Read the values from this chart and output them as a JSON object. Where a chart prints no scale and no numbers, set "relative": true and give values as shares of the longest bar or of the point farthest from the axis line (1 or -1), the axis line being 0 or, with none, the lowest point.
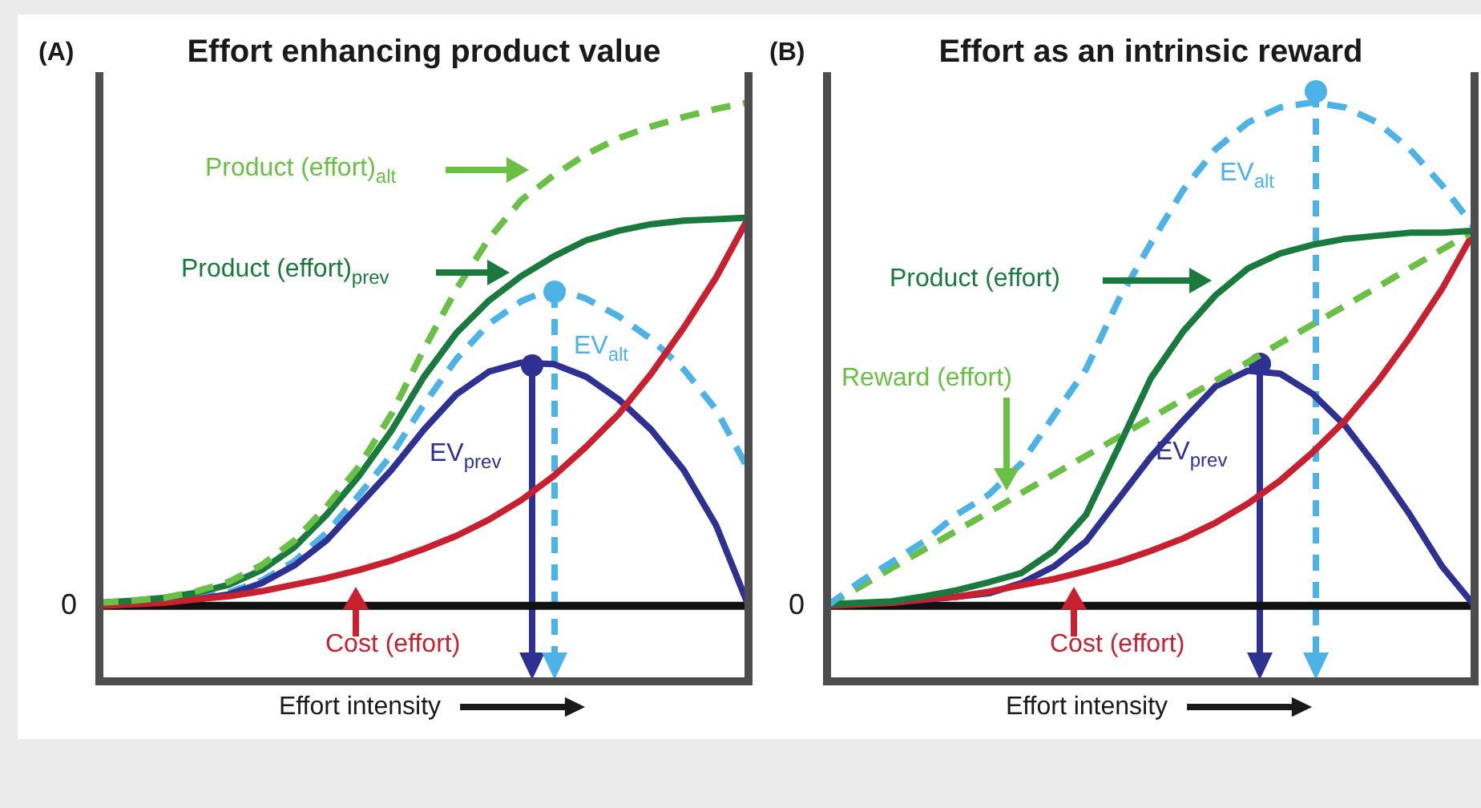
{
  "chart_data": [
    {
      "type": "line",
      "title": "Effort enhancing product value",
      "xlabel": "Effort intensity",
      "relative": true,
      "marker": "none",
      "legend": "top left",
      "categories": [
        null,
        null,
        null,
        null,
        null,
        null,
        null,
        null,
        null,
        null,
        null,
        null,
        null,
        null,
        null,
        null,
        null,
        null,
        null,
        null,
        null
      ],
      "series": [
        {
          "name": "Product (effort)$_{alt}$",
          "color": "#6abf45",
          "line_style": "dashed",
          "values": [
            0.006,
            0.01,
            0.016,
            0.029,
            0.048,
            0.081,
            0.129,
            0.197,
            0.277,
            0.381,
            0.51,
            0.629,
            0.729,
            0.806,
            0.855,
            0.897,
            0.929,
            0.952,
            0.971,
            0.987,
            1
          ]
        },
        {
          "name": "Product (effort)$_{prev}$",
          "color": "#1a7a3e",
          "line_style": "solid",
          "values": [
            0.006,
            0.01,
            0.016,
            0.026,
            0.042,
            0.071,
            0.116,
            0.181,
            0.258,
            0.348,
            0.455,
            0.542,
            0.606,
            0.655,
            0.694,
            0.726,
            0.745,
            0.758,
            0.765,
            0.768,
            0.771
          ]
        },
        {
          "name": "Cost (effort)",
          "color": "#c8202f",
          "line_style": "solid",
          "values": [
            0,
            0.003,
            0.006,
            0.013,
            0.019,
            0.029,
            0.042,
            0.055,
            0.071,
            0.09,
            0.113,
            0.139,
            0.171,
            0.21,
            0.258,
            0.316,
            0.381,
            0.461,
            0.552,
            0.652,
            0.771
          ]
        },
        {
          "name": "EV$_{prev}$",
          "color": "#2e3192",
          "line_style": "solid",
          "values": [
            null,
            null,
            0.008,
            0.013,
            0.023,
            0.045,
            0.08,
            0.13,
            0.2,
            0.27,
            0.35,
            0.42,
            0.465,
            0.483,
            0.48,
            0.455,
            0.41,
            0.35,
            0.27,
            0.16,
            0
          ]
        },
        {
          "name": "EV$_{alt}$",
          "color": "#4db3e6",
          "line_style": "dashed",
          "values": [
            null,
            null,
            null,
            0.015,
            0.027,
            0.05,
            0.088,
            0.145,
            0.22,
            0.3,
            0.4,
            0.49,
            0.56,
            0.605,
            0.632,
            0.61,
            0.575,
            0.53,
            0.47,
            0.39,
            0.27
          ]
        }
      ],
      "annotations": [
        "(A)",
        "0"
      ]
    },
    {
      "type": "line",
      "title": "Effort as an intrinsic reward",
      "xlabel": "Effort intensity",
      "relative": true,
      "marker": "none",
      "legend": "left",
      "categories": [
        null,
        null,
        null,
        null,
        null,
        null,
        null,
        null,
        null,
        null,
        null,
        null,
        null,
        null,
        null,
        null,
        null,
        null,
        null,
        null,
        null
      ],
      "series": [
        {
          "name": "EV$_{alt}$",
          "color": "#4db3e6",
          "line_style": "dashed",
          "values": [
            0,
            0.047,
            0.087,
            0.128,
            0.181,
            0.221,
            0.283,
            0.377,
            0.47,
            0.607,
            0.72,
            0.826,
            0.907,
            0.96,
            0.99,
            1,
            0.99,
            0.96,
            0.907,
            0.835,
            0.751
          ]
        },
        {
          "name": "Product (effort)",
          "color": "#1a7a3e",
          "line_style": "solid",
          "values": [
            0.003,
            0.006,
            0.009,
            0.019,
            0.031,
            0.047,
            0.065,
            0.109,
            0.181,
            0.315,
            0.452,
            0.545,
            0.617,
            0.67,
            0.7,
            0.717,
            0.729,
            0.735,
            0.741,
            0.741,
            0.745
          ]
        },
        {
          "name": "Reward (effort)",
          "color": "#6abf45",
          "line_style": "dashed",
          "values": [
            0,
            0.037,
            0.075,
            0.112,
            0.149,
            0.186,
            0.224,
            0.261,
            0.298,
            0.335,
            0.373,
            0.41,
            0.447,
            0.484,
            0.522,
            0.559,
            0.596,
            0.633,
            0.671,
            0.708,
            0.745
          ]
        },
        {
          "name": "Cost (effort)",
          "color": "#c8202f",
          "line_style": "solid",
          "values": [
            0,
            0.003,
            0.006,
            0.013,
            0.018,
            0.028,
            0.041,
            0.053,
            0.069,
            0.087,
            0.109,
            0.134,
            0.165,
            0.203,
            0.249,
            0.305,
            0.368,
            0.445,
            0.533,
            0.63,
            0.745
          ]
        },
        {
          "name": "EV$_{prev}$",
          "color": "#2e3192",
          "line_style": "solid",
          "values": [
            null,
            null,
            0.006,
            0.012,
            0.018,
            0.025,
            0.045,
            0.078,
            0.128,
            0.212,
            0.296,
            0.368,
            0.436,
            0.467,
            0.461,
            0.421,
            0.358,
            0.274,
            0.181,
            0.078,
            0
          ]
        }
      ],
      "annotations": [
        "(B)",
        "0"
      ]
    }
  ]
}
